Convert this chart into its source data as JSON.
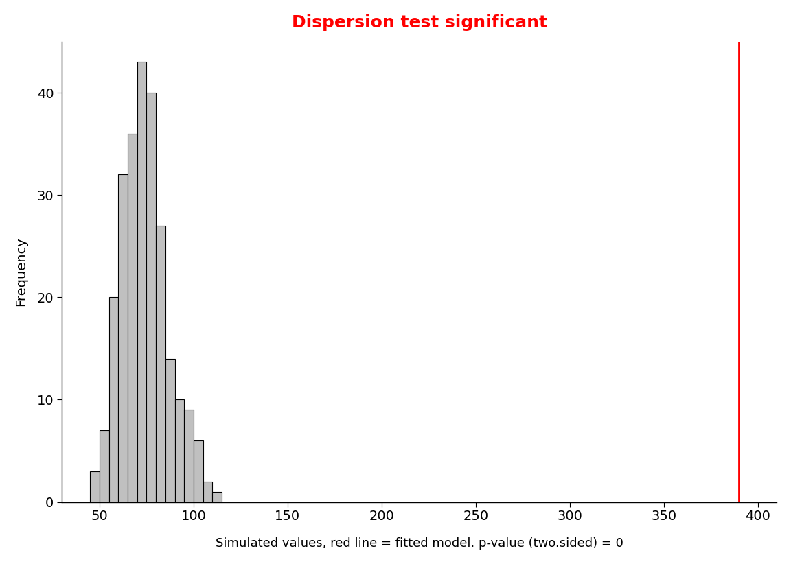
{
  "title": "Dispersion test significant",
  "title_color": "red",
  "title_fontsize": 18,
  "xlabel": "Simulated values, red line = fitted model. p-value (two.sided) = 0",
  "ylabel": "Frequency",
  "xlim": [
    30,
    410
  ],
  "ylim": [
    0,
    45
  ],
  "yticks": [
    0,
    10,
    20,
    30,
    40
  ],
  "xticks": [
    50,
    100,
    150,
    200,
    250,
    300,
    350,
    400
  ],
  "red_line_x": 390,
  "bar_edges": [
    45,
    50,
    55,
    60,
    65,
    70,
    75,
    80,
    85,
    90,
    95,
    100,
    105,
    110,
    115
  ],
  "bar_heights": [
    3,
    7,
    20,
    32,
    36,
    43,
    40,
    27,
    14,
    10,
    9,
    6,
    2,
    1
  ],
  "bar_color": "#c0c0c0",
  "bar_edgecolor": "#000000",
  "background_color": "#ffffff",
  "figsize": [
    11.52,
    8.22
  ],
  "dpi": 100
}
